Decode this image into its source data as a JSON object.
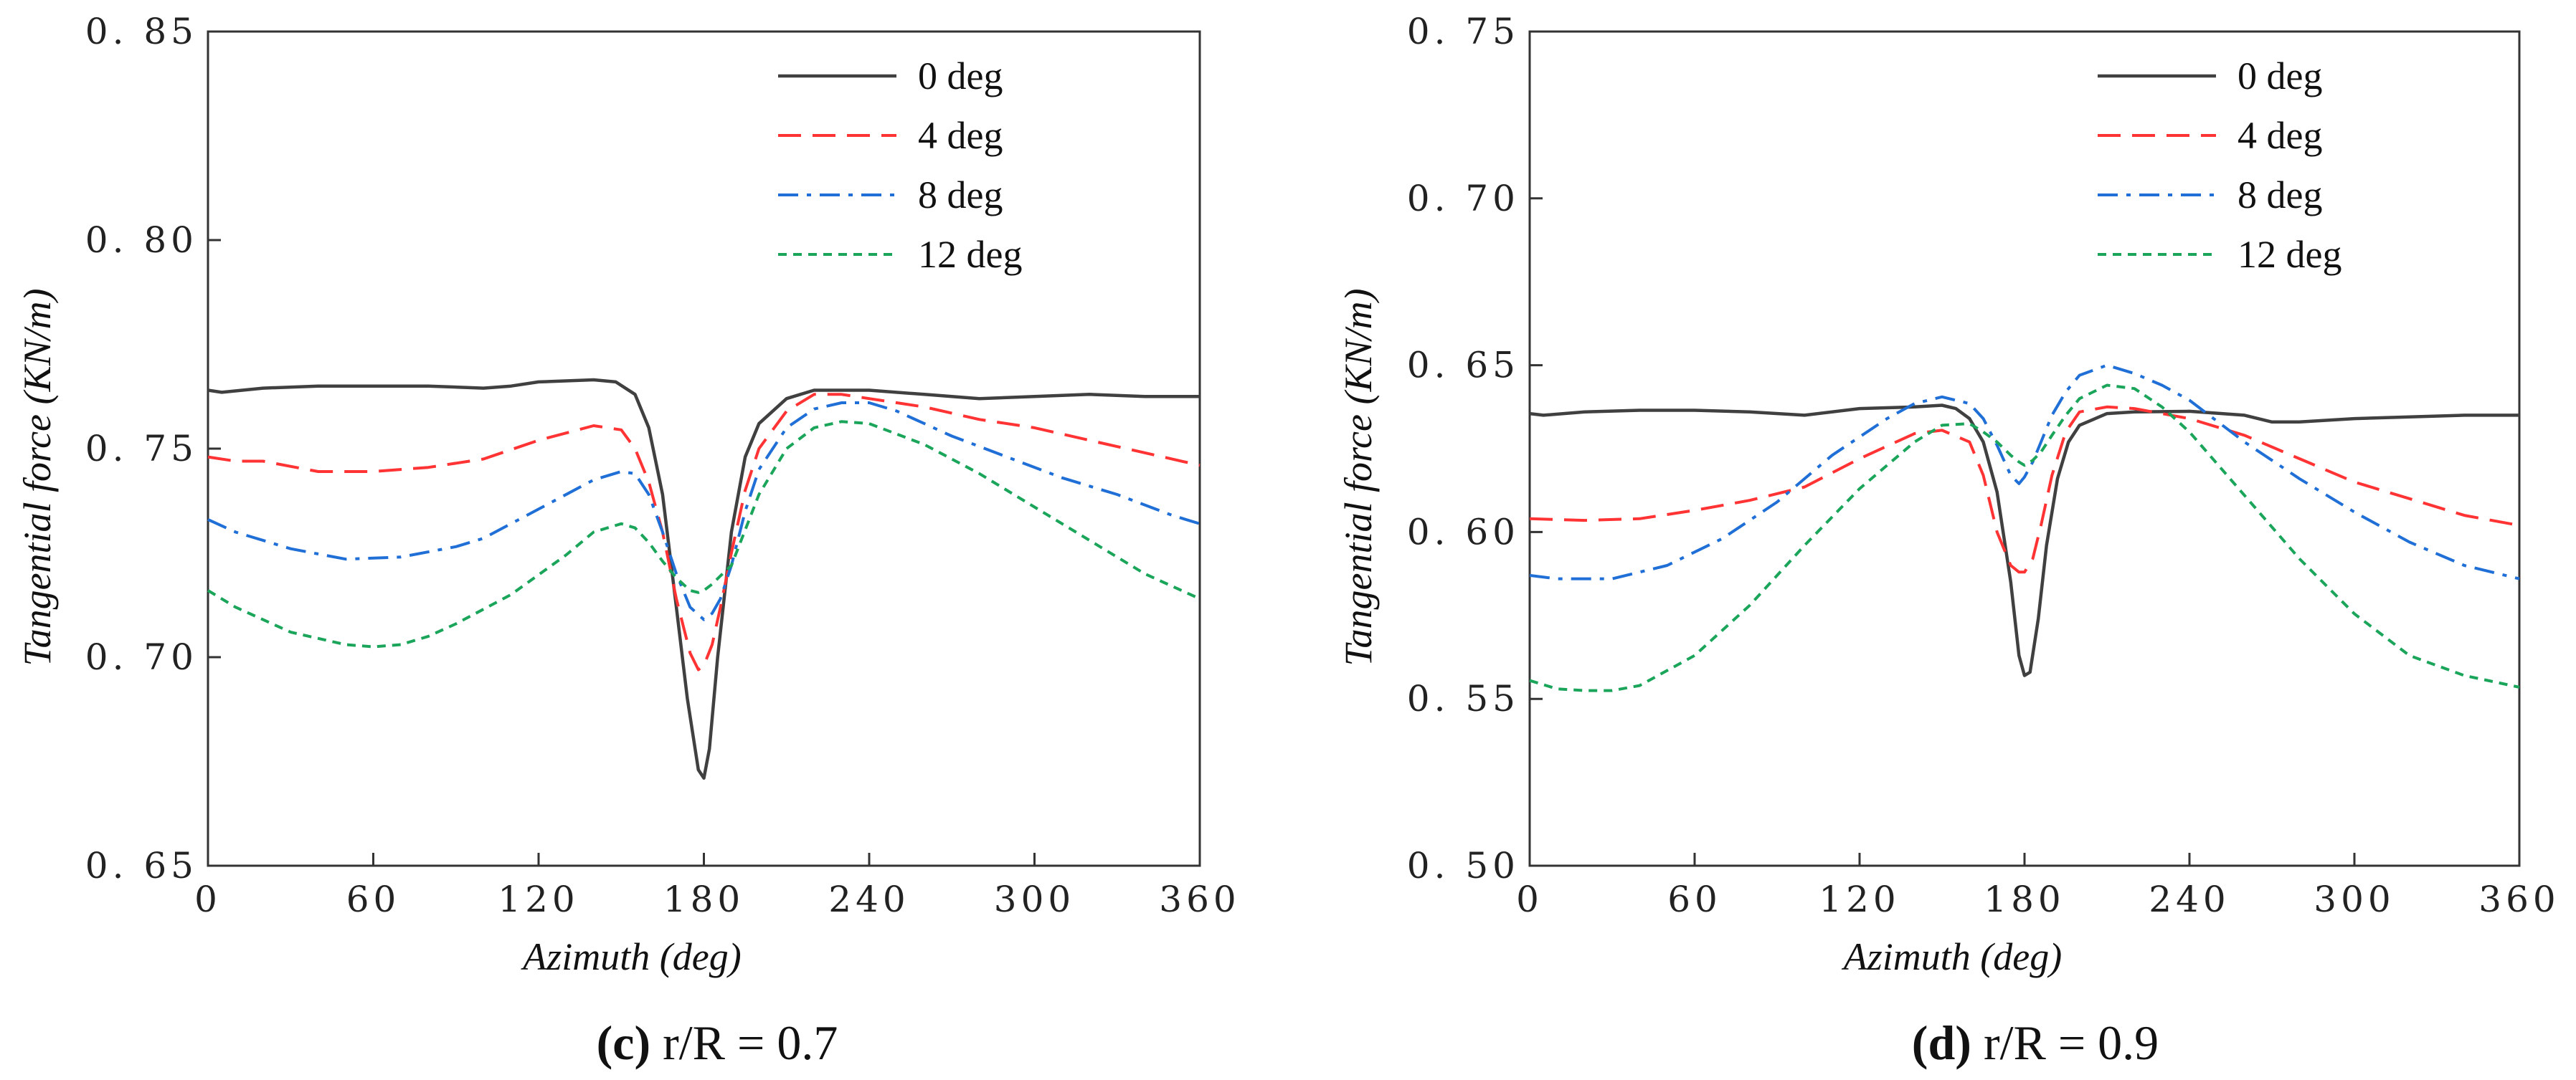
{
  "chart_data": [
    {
      "type": "line",
      "panel": "c",
      "caption_letter": "c",
      "caption_text": " r/R = 0.7",
      "xlabel": "Azimuth (deg)",
      "ylabel": "Tangential force (KN/m)",
      "xlim": [
        0,
        360
      ],
      "ylim": [
        0.65,
        0.85
      ],
      "xticks": [
        "0",
        "60",
        "120",
        "180",
        "240",
        "300",
        "360"
      ],
      "yticks": [
        "0. 65",
        "0. 70",
        "0. 75",
        "0. 80",
        "0. 85"
      ],
      "legend_position": "top-right",
      "series": [
        {
          "name": "0 deg",
          "color": "#404040",
          "dash": "solid",
          "x": [
            0,
            5,
            20,
            40,
            60,
            80,
            100,
            110,
            120,
            140,
            148,
            155,
            160,
            165,
            170,
            174,
            178,
            180,
            182,
            185,
            190,
            195,
            200,
            210,
            220,
            230,
            240,
            260,
            280,
            300,
            320,
            340,
            360
          ],
          "y": [
            0.764,
            0.7635,
            0.7645,
            0.765,
            0.765,
            0.765,
            0.7645,
            0.765,
            0.766,
            0.7665,
            0.766,
            0.763,
            0.755,
            0.739,
            0.712,
            0.69,
            0.673,
            0.671,
            0.678,
            0.7,
            0.73,
            0.748,
            0.756,
            0.762,
            0.764,
            0.764,
            0.764,
            0.763,
            0.762,
            0.7625,
            0.763,
            0.7625,
            0.7625
          ]
        },
        {
          "name": "4 deg",
          "color": "#ff3333",
          "dash": "dashed",
          "x": [
            0,
            10,
            20,
            40,
            60,
            80,
            100,
            120,
            140,
            150,
            155,
            160,
            165,
            170,
            175,
            178,
            180,
            183,
            186,
            190,
            195,
            200,
            210,
            220,
            230,
            240,
            260,
            280,
            300,
            320,
            340,
            360
          ],
          "y": [
            0.748,
            0.747,
            0.747,
            0.7445,
            0.7445,
            0.7455,
            0.7475,
            0.752,
            0.7555,
            0.7545,
            0.75,
            0.742,
            0.73,
            0.714,
            0.701,
            0.697,
            0.698,
            0.703,
            0.712,
            0.725,
            0.74,
            0.75,
            0.759,
            0.763,
            0.763,
            0.762,
            0.76,
            0.757,
            0.755,
            0.752,
            0.749,
            0.746
          ]
        },
        {
          "name": "8 deg",
          "color": "#1f6fd6",
          "dash": "dashdot",
          "x": [
            0,
            10,
            30,
            50,
            70,
            90,
            100,
            120,
            140,
            150,
            155,
            160,
            165,
            170,
            175,
            180,
            183,
            186,
            190,
            195,
            200,
            210,
            220,
            230,
            240,
            250,
            270,
            290,
            310,
            330,
            350,
            360
          ],
          "y": [
            0.733,
            0.73,
            0.726,
            0.7235,
            0.724,
            0.7265,
            0.7285,
            0.7355,
            0.7425,
            0.7445,
            0.744,
            0.739,
            0.73,
            0.72,
            0.712,
            0.709,
            0.7105,
            0.714,
            0.722,
            0.735,
            0.745,
            0.755,
            0.7595,
            0.761,
            0.761,
            0.759,
            0.753,
            0.748,
            0.743,
            0.739,
            0.734,
            0.732
          ]
        },
        {
          "name": "12 deg",
          "color": "#1aa55a",
          "dash": "dotted",
          "x": [
            0,
            10,
            30,
            50,
            60,
            70,
            80,
            90,
            110,
            130,
            140,
            150,
            155,
            160,
            165,
            170,
            175,
            178,
            180,
            183,
            186,
            190,
            195,
            200,
            210,
            220,
            230,
            240,
            260,
            280,
            300,
            320,
            340,
            360
          ],
          "y": [
            0.716,
            0.712,
            0.706,
            0.703,
            0.7025,
            0.703,
            0.705,
            0.708,
            0.715,
            0.7245,
            0.73,
            0.732,
            0.731,
            0.7275,
            0.723,
            0.719,
            0.716,
            0.7155,
            0.716,
            0.7175,
            0.7195,
            0.722,
            0.7305,
            0.739,
            0.75,
            0.755,
            0.7565,
            0.756,
            0.751,
            0.744,
            0.736,
            0.728,
            0.72,
            0.714
          ]
        }
      ]
    },
    {
      "type": "line",
      "panel": "d",
      "caption_letter": "d",
      "caption_text": " r/R = 0.9",
      "xlabel": "Azimuth (deg)",
      "ylabel": "Tangential force (KN/m)",
      "xlim": [
        0,
        360
      ],
      "ylim": [
        0.5,
        0.75
      ],
      "xticks": [
        "0",
        "60",
        "120",
        "180",
        "240",
        "300",
        "360"
      ],
      "yticks": [
        "0. 50",
        "0. 55",
        "0. 60",
        "0. 65",
        "0. 70",
        "0. 75"
      ],
      "legend_position": "top-right",
      "series": [
        {
          "name": "0 deg",
          "color": "#404040",
          "dash": "solid",
          "x": [
            0,
            5,
            20,
            40,
            60,
            80,
            100,
            120,
            140,
            150,
            155,
            160,
            165,
            170,
            175,
            178,
            180,
            182,
            185,
            188,
            192,
            196,
            200,
            210,
            220,
            240,
            260,
            270,
            280,
            300,
            320,
            340,
            360
          ],
          "y": [
            0.6355,
            0.635,
            0.636,
            0.6365,
            0.6365,
            0.636,
            0.635,
            0.637,
            0.6375,
            0.638,
            0.637,
            0.634,
            0.627,
            0.612,
            0.585,
            0.563,
            0.557,
            0.558,
            0.574,
            0.596,
            0.616,
            0.627,
            0.632,
            0.6355,
            0.636,
            0.6362,
            0.635,
            0.633,
            0.633,
            0.634,
            0.6345,
            0.635,
            0.635
          ]
        },
        {
          "name": "4 deg",
          "color": "#ff3333",
          "dash": "dashed",
          "x": [
            0,
            20,
            40,
            60,
            80,
            100,
            120,
            140,
            150,
            160,
            165,
            170,
            175,
            178,
            180,
            183,
            186,
            190,
            195,
            200,
            210,
            220,
            240,
            260,
            280,
            300,
            320,
            340,
            360
          ],
          "y": [
            0.604,
            0.6035,
            0.604,
            0.6065,
            0.6095,
            0.6135,
            0.622,
            0.6295,
            0.6305,
            0.627,
            0.617,
            0.6,
            0.59,
            0.588,
            0.588,
            0.592,
            0.602,
            0.617,
            0.63,
            0.636,
            0.6375,
            0.637,
            0.634,
            0.629,
            0.622,
            0.615,
            0.61,
            0.605,
            0.602
          ]
        },
        {
          "name": "8 deg",
          "color": "#1f6fd6",
          "dash": "dashdot",
          "x": [
            0,
            10,
            30,
            50,
            70,
            90,
            110,
            130,
            140,
            150,
            160,
            165,
            170,
            175,
            178,
            180,
            183,
            186,
            190,
            195,
            200,
            210,
            220,
            230,
            240,
            260,
            280,
            300,
            320,
            340,
            360
          ],
          "y": [
            0.587,
            0.586,
            0.586,
            0.59,
            0.598,
            0.609,
            0.623,
            0.634,
            0.6385,
            0.6405,
            0.6385,
            0.634,
            0.626,
            0.617,
            0.6145,
            0.6165,
            0.621,
            0.627,
            0.635,
            0.642,
            0.647,
            0.65,
            0.6475,
            0.644,
            0.6395,
            0.627,
            0.616,
            0.606,
            0.597,
            0.59,
            0.586
          ]
        },
        {
          "name": "12 deg",
          "color": "#1aa55a",
          "dash": "dotted",
          "x": [
            0,
            10,
            20,
            30,
            40,
            60,
            80,
            100,
            120,
            140,
            150,
            160,
            165,
            170,
            175,
            178,
            180,
            183,
            186,
            190,
            195,
            200,
            210,
            220,
            230,
            240,
            260,
            280,
            300,
            320,
            340,
            360
          ],
          "y": [
            0.5555,
            0.553,
            0.5525,
            0.5525,
            0.554,
            0.563,
            0.578,
            0.596,
            0.613,
            0.627,
            0.632,
            0.6325,
            0.63,
            0.627,
            0.623,
            0.621,
            0.62,
            0.6215,
            0.624,
            0.629,
            0.635,
            0.64,
            0.644,
            0.643,
            0.6375,
            0.63,
            0.611,
            0.592,
            0.5755,
            0.563,
            0.557,
            0.5535
          ]
        }
      ]
    }
  ]
}
